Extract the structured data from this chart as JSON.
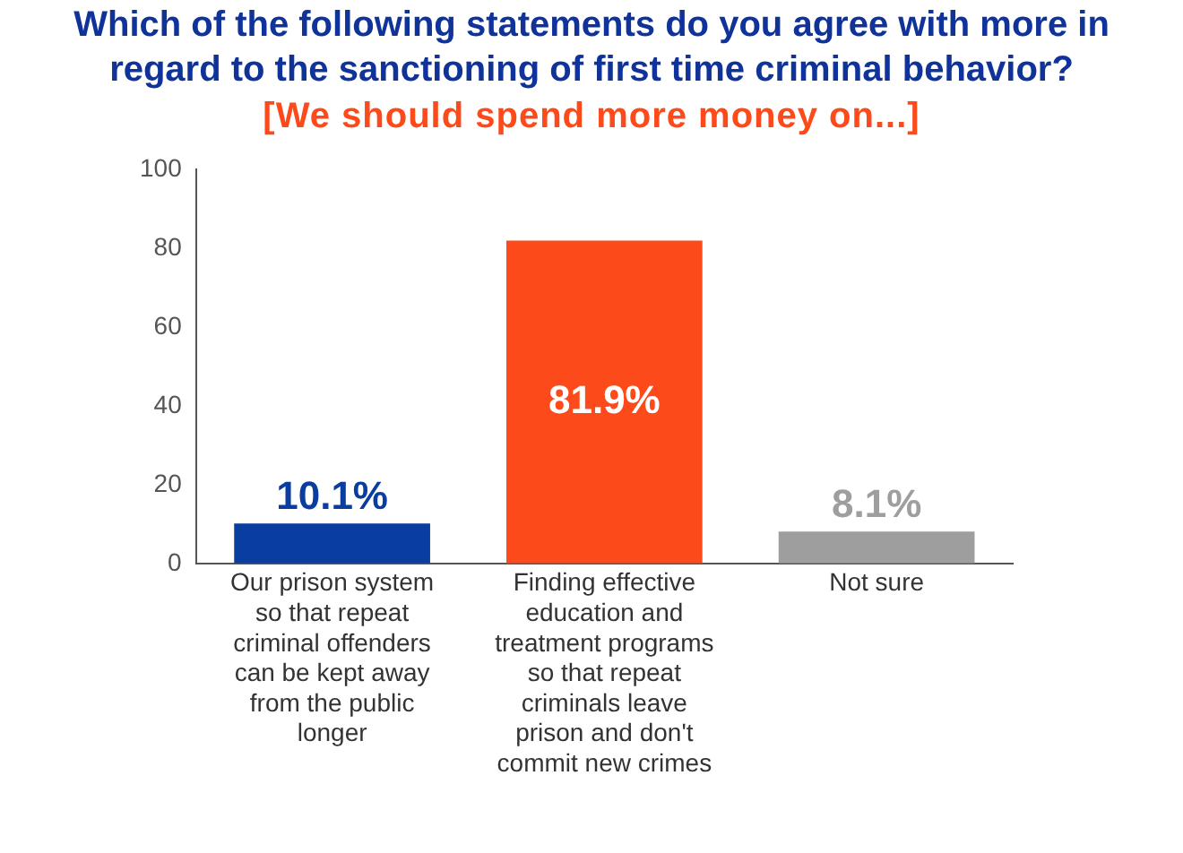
{
  "chart_data": {
    "type": "bar",
    "title": "Which of the following statements do you agree with more in regard to the sanctioning of first time criminal behavior?",
    "subtitle": "[We should spend more money on...]",
    "categories": [
      "Our prison system so that repeat criminal offenders can be kept away from the public longer",
      "Finding effective education and treatment programs so that repeat criminals leave prison and don't commit new crimes",
      "Not sure"
    ],
    "values": [
      10.1,
      81.9,
      8.1
    ],
    "colors": [
      "#0a3da0",
      "#fc4a1a",
      "#9e9e9e"
    ],
    "value_labels": [
      "10.1%",
      "81.9%",
      "8.1%"
    ],
    "ylim": [
      0,
      100
    ],
    "yticks": [
      0,
      20,
      40,
      60,
      80,
      100
    ],
    "grid": false,
    "legend": false
  }
}
